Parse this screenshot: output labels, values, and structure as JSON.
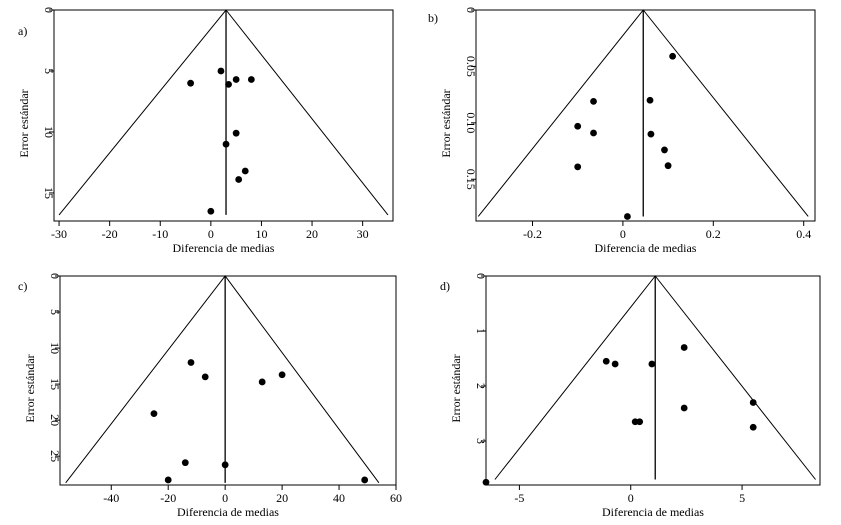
{
  "chart_data": [
    {
      "type": "scatter",
      "panel_label": "a)",
      "xlabel": "Diferencia de medias",
      "ylabel": "Error estándar",
      "xlim": [
        -31,
        36
      ],
      "ylim": [
        0,
        17.3
      ],
      "y_reversed": true,
      "x_ticks": [
        -30,
        -20,
        -10,
        0,
        10,
        20,
        30
      ],
      "y_ticks": [
        0,
        5,
        10,
        15
      ],
      "funnel": {
        "apex_x": 3,
        "apex_y": 0,
        "left_bottom_x": -30,
        "right_bottom_x": 35,
        "bottom_y": 16.8
      },
      "vertical_line_x": 3,
      "points": [
        {
          "x": 2,
          "y": 5
        },
        {
          "x": -4,
          "y": 6
        },
        {
          "x": 3.5,
          "y": 6.1
        },
        {
          "x": 5,
          "y": 5.7
        },
        {
          "x": 8,
          "y": 5.7
        },
        {
          "x": 5,
          "y": 10.1
        },
        {
          "x": 3,
          "y": 11
        },
        {
          "x": 6.8,
          "y": 13.2
        },
        {
          "x": 5.5,
          "y": 13.9
        },
        {
          "x": 0,
          "y": 16.5
        }
      ]
    },
    {
      "type": "scatter",
      "panel_label": "b)",
      "xlabel": "Diferencia de medias",
      "ylabel": "Error estándar",
      "xlim": [
        -0.325,
        0.425
      ],
      "ylim": [
        0,
        0.187
      ],
      "y_reversed": true,
      "x_ticks": [
        -0.2,
        0,
        0.2,
        0.4
      ],
      "y_ticks": [
        0,
        0.05,
        0.1,
        0.15
      ],
      "x_tick_labels": [
        "-0.2",
        "0",
        "0.2",
        "0.4"
      ],
      "y_tick_labels": [
        "0",
        "0.05",
        "0.10",
        "0.15"
      ],
      "funnel": {
        "apex_x": 0.045,
        "apex_y": 0,
        "left_bottom_x": -0.32,
        "right_bottom_x": 0.41,
        "bottom_y": 0.183
      },
      "vertical_line_x": 0.045,
      "points": [
        {
          "x": 0.11,
          "y": 0.041
        },
        {
          "x": -0.065,
          "y": 0.081
        },
        {
          "x": 0.06,
          "y": 0.08
        },
        {
          "x": -0.1,
          "y": 0.103
        },
        {
          "x": -0.065,
          "y": 0.109
        },
        {
          "x": 0.062,
          "y": 0.11
        },
        {
          "x": 0.092,
          "y": 0.124
        },
        {
          "x": -0.1,
          "y": 0.139
        },
        {
          "x": 0.1,
          "y": 0.138
        },
        {
          "x": 0.01,
          "y": 0.183
        }
      ]
    },
    {
      "type": "scatter",
      "panel_label": "c)",
      "xlabel": "Diferencia de medias",
      "ylabel": "Error estándar",
      "xlim": [
        -58,
        60
      ],
      "ylim": [
        0,
        29
      ],
      "y_reversed": true,
      "x_ticks": [
        -40,
        -20,
        0,
        20,
        40,
        60
      ],
      "y_ticks": [
        0,
        5,
        10,
        15,
        20,
        25
      ],
      "funnel": {
        "apex_x": 0,
        "apex_y": 0,
        "left_bottom_x": -56,
        "right_bottom_x": 54,
        "bottom_y": 28.7
      },
      "vertical_line_x": 0,
      "points": [
        {
          "x": -12,
          "y": 12
        },
        {
          "x": -7,
          "y": 14
        },
        {
          "x": 13,
          "y": 14.7
        },
        {
          "x": 20,
          "y": 13.7
        },
        {
          "x": -25,
          "y": 19.1
        },
        {
          "x": -14,
          "y": 25.9
        },
        {
          "x": 0,
          "y": 26.2
        },
        {
          "x": -20,
          "y": 28.3
        },
        {
          "x": 49,
          "y": 28.3
        }
      ]
    },
    {
      "type": "scatter",
      "panel_label": "d)",
      "xlabel": "Diferencia de medias",
      "ylabel": "Error estándar",
      "xlim": [
        -6.5,
        8.5
      ],
      "ylim": [
        0,
        3.8
      ],
      "y_reversed": true,
      "x_ticks": [
        -5,
        0,
        5
      ],
      "y_ticks": [
        0,
        1,
        2,
        3
      ],
      "funnel": {
        "apex_x": 1.1,
        "apex_y": 0,
        "left_bottom_x": -6.1,
        "right_bottom_x": 8.3,
        "bottom_y": 3.7
      },
      "vertical_line_x": 1.1,
      "points": [
        {
          "x": 2.4,
          "y": 1.3
        },
        {
          "x": -1.1,
          "y": 1.55
        },
        {
          "x": -0.7,
          "y": 1.6
        },
        {
          "x": 0.95,
          "y": 1.6
        },
        {
          "x": 5.5,
          "y": 2.3
        },
        {
          "x": 2.4,
          "y": 2.4
        },
        {
          "x": 0.4,
          "y": 2.65
        },
        {
          "x": 0.2,
          "y": 2.65
        },
        {
          "x": 5.5,
          "y": 2.75
        },
        {
          "x": -6.5,
          "y": 3.75
        }
      ]
    }
  ]
}
